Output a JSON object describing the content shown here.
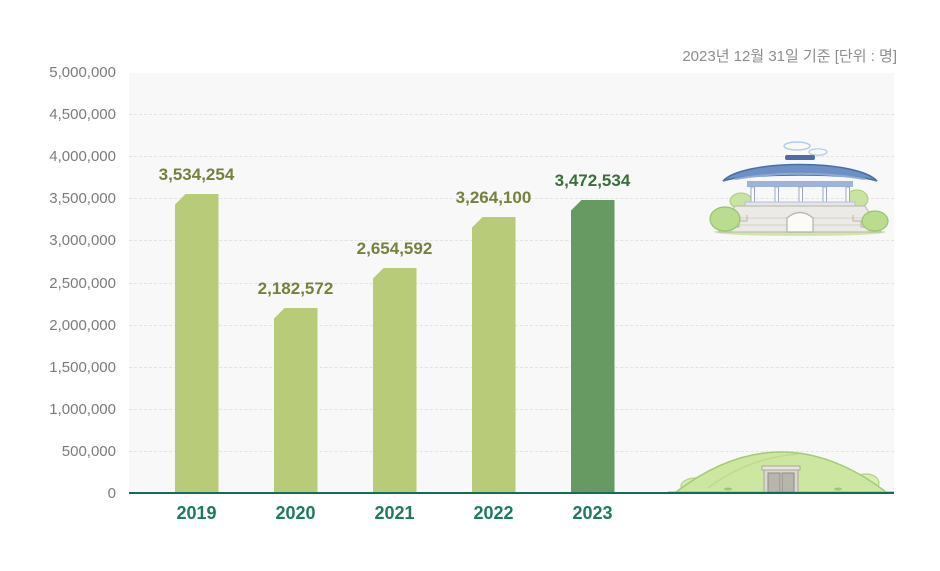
{
  "header": {
    "note": "2023년 12월 31일 기준  [단위 : 명]"
  },
  "chart_data": {
    "type": "bar",
    "title": "",
    "as_of": "2023년 12월 31일 기준",
    "unit": "명",
    "categories": [
      "2019",
      "2020",
      "2021",
      "2022",
      "2023"
    ],
    "values": [
      3534254,
      2182572,
      2654592,
      3264100,
      3472534
    ],
    "value_labels": [
      "3,534,254",
      "2,182,572",
      "2,654,592",
      "3,264,100",
      "3,472,534"
    ],
    "ylim": [
      0,
      5000000
    ],
    "ytick_step": 500000,
    "ytick_labels": [
      "0",
      "500,000",
      "1,000,000",
      "1,500,000",
      "2,000,000",
      "2,500,000",
      "3,000,000",
      "3,500,000",
      "4,000,000",
      "4,500,000",
      "5,000,000"
    ],
    "grid": "horizontal-dashed",
    "legend": "none",
    "bar_color": "#b8cb79",
    "highlight_bar_color": "#679a62",
    "highlight_index": 4,
    "value_label_color": "#76813d",
    "highlight_value_label_color": "#3c6d3c",
    "xlabel_color": "#1b7a60",
    "axis_line_color": "#156a5b",
    "plot_background": "#f8f8f8"
  },
  "decorations": {
    "top_right": "korean-palace-gate-illustration",
    "bottom_right": "royal-tomb-mound-illustration"
  }
}
